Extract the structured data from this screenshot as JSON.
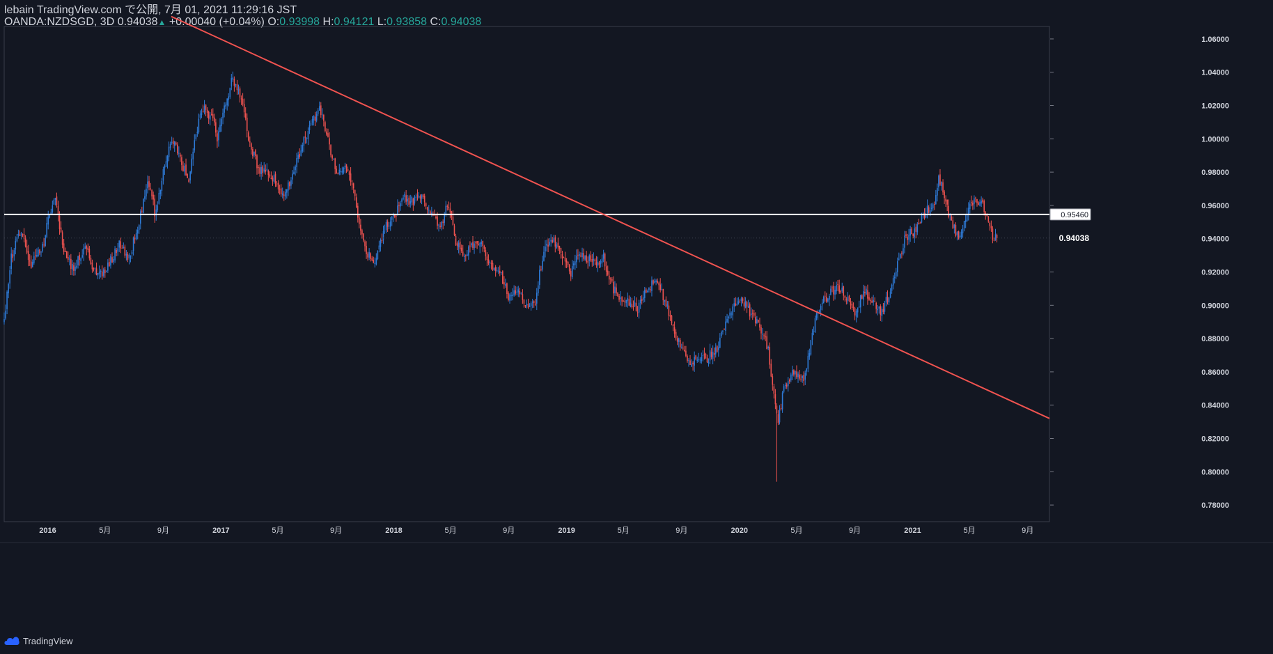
{
  "header": {
    "line1": "lebain TradingView.com で公開, 7月 01, 2021 11:29:16 JST",
    "symbol": "OANDA:NZDSGD, 3D",
    "last": "0.94038",
    "up_arrow": "▲",
    "change": "+0.00040 (+0.04%)",
    "o_label": "O:",
    "o_value": "0.93998",
    "h_label": "H:",
    "h_value": "0.94121",
    "l_label": "L:",
    "l_value": "0.93858",
    "c_label": "C:",
    "c_value": "0.94038"
  },
  "footer": {
    "brand": "TradingView",
    "logo_icon": "tradingview-cloud-icon"
  },
  "colors": {
    "background": "#131722",
    "up": "#2e7ad6",
    "down": "#ef5350",
    "trendline": "#f05350",
    "hline": "#ffffff",
    "text": "#d1d4dc",
    "ohlc_value": "#26a69a"
  },
  "chart_data": {
    "type": "candlestick",
    "symbol": "OANDA:NZDSGD",
    "interval": "3D",
    "ylim": [
      0.77,
      1.0675
    ],
    "y_ticks": [
      0.78,
      0.8,
      0.82,
      0.84,
      0.86,
      0.88,
      0.9,
      0.92,
      0.94,
      0.96,
      0.98,
      1.0,
      1.02,
      1.04,
      1.06
    ],
    "y_tick_labels": [
      "0.78000",
      "0.80000",
      "0.82000",
      "0.84000",
      "0.86000",
      "0.88000",
      "0.90000",
      "0.92000",
      "0.94000",
      "0.96000",
      "0.98000",
      "1.00000",
      "1.02000",
      "1.04000",
      "1.06000"
    ],
    "x_range": [
      "2015-10-01",
      "2021-10-17"
    ],
    "x_ticks": [
      {
        "date": "2016-01-01",
        "label": "2016",
        "year": true
      },
      {
        "date": "2016-05-01",
        "label": "5月"
      },
      {
        "date": "2016-09-01",
        "label": "9月"
      },
      {
        "date": "2017-01-01",
        "label": "2017",
        "year": true
      },
      {
        "date": "2017-05-01",
        "label": "5月"
      },
      {
        "date": "2017-09-01",
        "label": "9月"
      },
      {
        "date": "2018-01-01",
        "label": "2018",
        "year": true
      },
      {
        "date": "2018-05-01",
        "label": "5月"
      },
      {
        "date": "2018-09-01",
        "label": "9月"
      },
      {
        "date": "2019-01-01",
        "label": "2019",
        "year": true
      },
      {
        "date": "2019-05-01",
        "label": "5月"
      },
      {
        "date": "2019-09-01",
        "label": "9月"
      },
      {
        "date": "2020-01-01",
        "label": "2020",
        "year": true
      },
      {
        "date": "2020-05-01",
        "label": "5月"
      },
      {
        "date": "2020-09-01",
        "label": "9月"
      },
      {
        "date": "2021-01-01",
        "label": "2021",
        "year": true
      },
      {
        "date": "2021-05-01",
        "label": "5月"
      },
      {
        "date": "2021-09-01",
        "label": "9月"
      }
    ],
    "last_price": {
      "value": 0.94038,
      "label": "0.94038"
    },
    "horizontal_line": {
      "value": 0.9546,
      "label": "0.95460"
    },
    "trendline": [
      {
        "date": "2016-09-18",
        "value": 1.0735
      },
      {
        "date": "2021-10-17",
        "value": 0.832
      }
    ],
    "price_path": [
      [
        "2015-10-01",
        0.889
      ],
      [
        "2015-10-15",
        0.928
      ],
      [
        "2015-11-05",
        0.945
      ],
      [
        "2015-11-25",
        0.924
      ],
      [
        "2015-12-20",
        0.934
      ],
      [
        "2016-01-15",
        0.967
      ],
      [
        "2016-02-05",
        0.93
      ],
      [
        "2016-02-25",
        0.922
      ],
      [
        "2016-03-20",
        0.935
      ],
      [
        "2016-04-15",
        0.917
      ],
      [
        "2016-05-10",
        0.925
      ],
      [
        "2016-06-01",
        0.938
      ],
      [
        "2016-06-20",
        0.928
      ],
      [
        "2016-07-10",
        0.948
      ],
      [
        "2016-08-01",
        0.975
      ],
      [
        "2016-08-15",
        0.955
      ],
      [
        "2016-09-01",
        0.98
      ],
      [
        "2016-09-20",
        1.0
      ],
      [
        "2016-10-10",
        0.985
      ],
      [
        "2016-10-25",
        0.975
      ],
      [
        "2016-11-10",
        1.005
      ],
      [
        "2016-11-25",
        1.02
      ],
      [
        "2016-12-15",
        1.01
      ],
      [
        "2016-12-25",
        1.0
      ],
      [
        "2017-01-10",
        1.02
      ],
      [
        "2017-01-25",
        1.036
      ],
      [
        "2017-02-15",
        1.024
      ],
      [
        "2017-03-01",
        1.0
      ],
      [
        "2017-03-20",
        0.982
      ],
      [
        "2017-04-10",
        0.98
      ],
      [
        "2017-04-25",
        0.975
      ],
      [
        "2017-05-15",
        0.965
      ],
      [
        "2017-06-01",
        0.978
      ],
      [
        "2017-06-20",
        0.995
      ],
      [
        "2017-07-10",
        1.01
      ],
      [
        "2017-07-30",
        1.018
      ],
      [
        "2017-08-15",
        1.0
      ],
      [
        "2017-09-01",
        0.98
      ],
      [
        "2017-09-20",
        0.985
      ],
      [
        "2017-10-05",
        0.972
      ],
      [
        "2017-10-20",
        0.95
      ],
      [
        "2017-11-05",
        0.93
      ],
      [
        "2017-11-25",
        0.928
      ],
      [
        "2017-12-15",
        0.948
      ],
      [
        "2018-01-05",
        0.955
      ],
      [
        "2018-01-20",
        0.965
      ],
      [
        "2018-02-10",
        0.962
      ],
      [
        "2018-03-01",
        0.965
      ],
      [
        "2018-03-20",
        0.955
      ],
      [
        "2018-04-10",
        0.945
      ],
      [
        "2018-04-25",
        0.963
      ],
      [
        "2018-05-10",
        0.94
      ],
      [
        "2018-05-25",
        0.93
      ],
      [
        "2018-06-15",
        0.935
      ],
      [
        "2018-07-01",
        0.938
      ],
      [
        "2018-07-25",
        0.925
      ],
      [
        "2018-08-15",
        0.918
      ],
      [
        "2018-09-01",
        0.905
      ],
      [
        "2018-09-20",
        0.91
      ],
      [
        "2018-10-10",
        0.898
      ],
      [
        "2018-10-25",
        0.9
      ],
      [
        "2018-11-15",
        0.935
      ],
      [
        "2018-12-01",
        0.94
      ],
      [
        "2018-12-20",
        0.93
      ],
      [
        "2019-01-10",
        0.92
      ],
      [
        "2019-01-25",
        0.93
      ],
      [
        "2019-02-15",
        0.928
      ],
      [
        "2019-03-05",
        0.925
      ],
      [
        "2019-03-20",
        0.928
      ],
      [
        "2019-04-10",
        0.91
      ],
      [
        "2019-04-25",
        0.905
      ],
      [
        "2019-05-15",
        0.902
      ],
      [
        "2019-06-01",
        0.898
      ],
      [
        "2019-06-20",
        0.91
      ],
      [
        "2019-07-10",
        0.915
      ],
      [
        "2019-07-25",
        0.905
      ],
      [
        "2019-08-10",
        0.89
      ],
      [
        "2019-08-25",
        0.878
      ],
      [
        "2019-09-15",
        0.865
      ],
      [
        "2019-10-05",
        0.87
      ],
      [
        "2019-10-25",
        0.868
      ],
      [
        "2019-11-15",
        0.875
      ],
      [
        "2019-12-01",
        0.888
      ],
      [
        "2019-12-20",
        0.9
      ],
      [
        "2020-01-05",
        0.905
      ],
      [
        "2020-01-25",
        0.895
      ],
      [
        "2020-02-15",
        0.885
      ],
      [
        "2020-03-01",
        0.875
      ],
      [
        "2020-03-15",
        0.845
      ],
      [
        "2020-03-22",
        0.828
      ],
      [
        "2020-04-05",
        0.852
      ],
      [
        "2020-04-25",
        0.86
      ],
      [
        "2020-05-15",
        0.855
      ],
      [
        "2020-06-01",
        0.878
      ],
      [
        "2020-06-15",
        0.898
      ],
      [
        "2020-07-05",
        0.905
      ],
      [
        "2020-07-25",
        0.912
      ],
      [
        "2020-08-15",
        0.905
      ],
      [
        "2020-09-01",
        0.895
      ],
      [
        "2020-09-20",
        0.91
      ],
      [
        "2020-10-10",
        0.902
      ],
      [
        "2020-10-25",
        0.895
      ],
      [
        "2020-11-10",
        0.905
      ],
      [
        "2020-11-25",
        0.92
      ],
      [
        "2020-12-15",
        0.94
      ],
      [
        "2021-01-05",
        0.945
      ],
      [
        "2021-01-25",
        0.955
      ],
      [
        "2021-02-15",
        0.962
      ],
      [
        "2021-02-25",
        0.978
      ],
      [
        "2021-03-10",
        0.965
      ],
      [
        "2021-03-25",
        0.948
      ],
      [
        "2021-04-10",
        0.94
      ],
      [
        "2021-04-25",
        0.955
      ],
      [
        "2021-05-10",
        0.962
      ],
      [
        "2021-05-25",
        0.962
      ],
      [
        "2021-06-10",
        0.95
      ],
      [
        "2021-06-20",
        0.941
      ],
      [
        "2021-06-30",
        0.94
      ]
    ]
  }
}
